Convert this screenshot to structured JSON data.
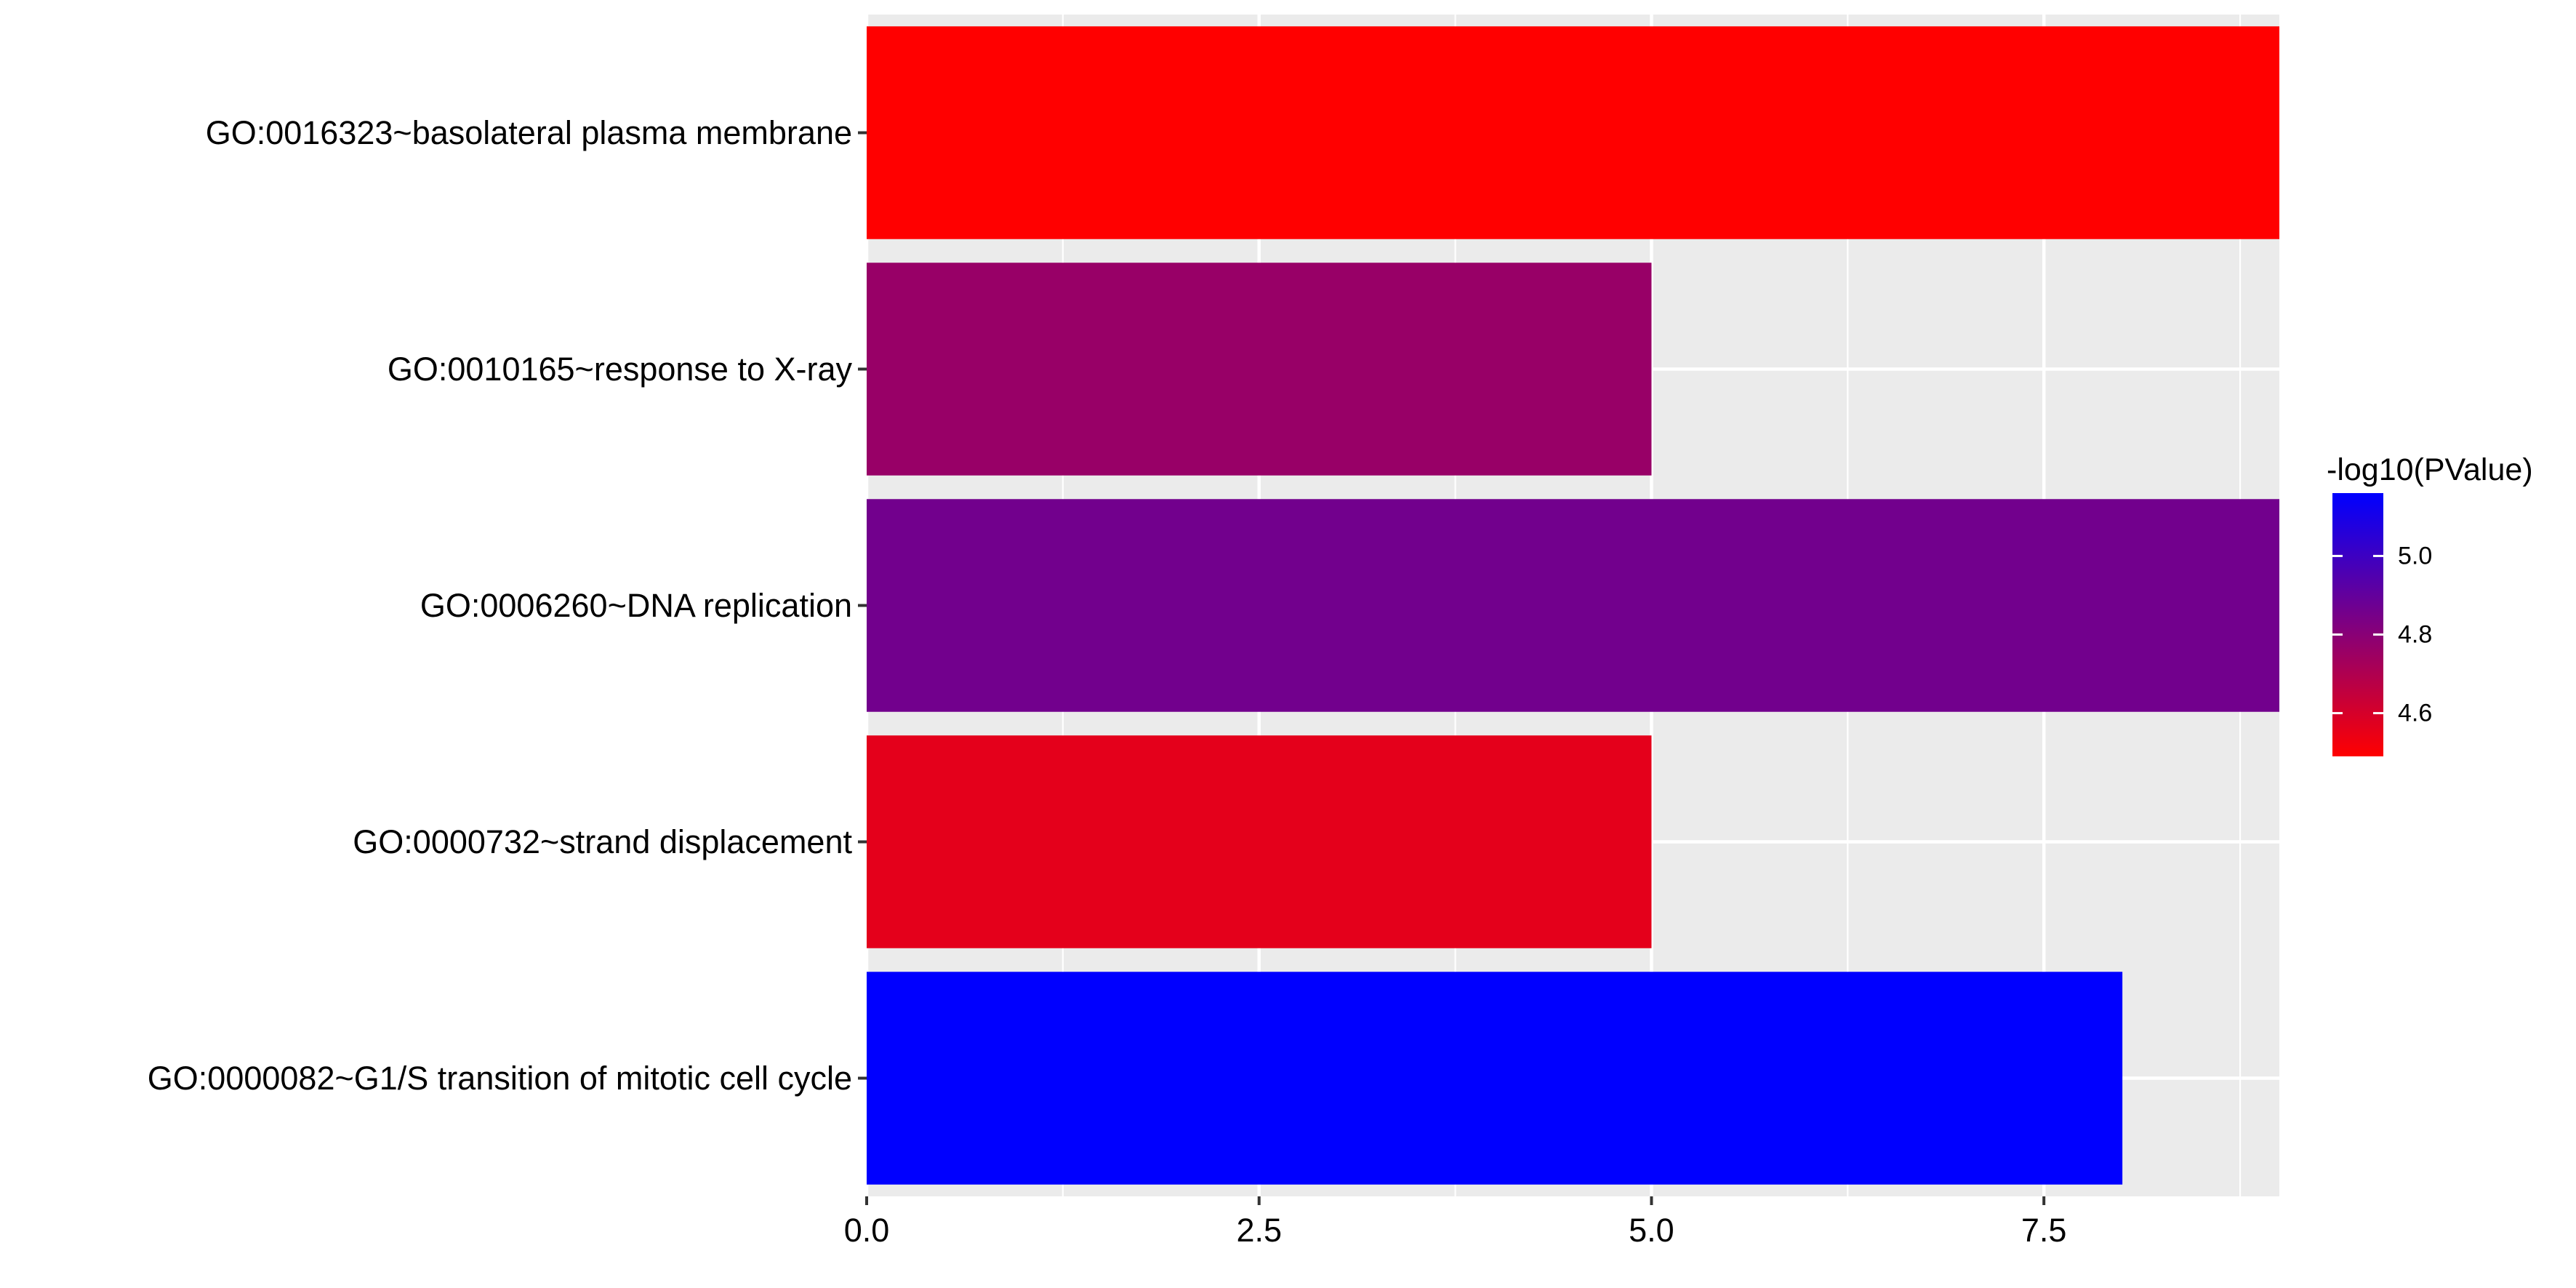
{
  "chart_data": {
    "type": "bar",
    "orientation": "horizontal",
    "categories": [
      "GO:0016323~basolateral plasma membrane",
      "GO:0010165~response to X-ray",
      "GO:0006260~DNA replication",
      "GO:0000732~strand displacement",
      "GO:0000082~G1/S transition of mitotic cell cycle"
    ],
    "values": [
      9,
      5,
      9,
      5,
      8
    ],
    "color_values": [
      4.49,
      4.76,
      4.86,
      4.56,
      5.16
    ],
    "xlim": [
      0,
      9
    ],
    "x_ticks": [
      "0.0",
      "2.5",
      "5.0",
      "7.5"
    ],
    "x_tick_values": [
      0,
      2.5,
      5,
      7.5
    ],
    "xlabel": "",
    "ylabel": "",
    "grid": true,
    "legend": {
      "title": "-log10(PValue)",
      "placement": "right",
      "tick_labels": [
        "5.0",
        "4.8",
        "4.6"
      ],
      "tick_values": [
        5.0,
        4.8,
        4.6
      ],
      "range": [
        4.49,
        5.16
      ],
      "color_low": "#FF0000",
      "color_high": "#0000FF"
    },
    "panel_background": "#EBEBEB",
    "grid_color": "#FFFFFF"
  }
}
